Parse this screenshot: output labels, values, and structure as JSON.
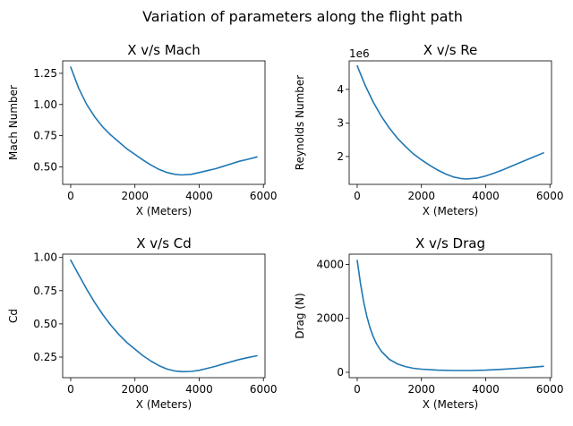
{
  "figure": {
    "suptitle": "Variation of parameters along the flight path"
  },
  "style": {
    "line_color": "#1f77b4"
  },
  "chart_data": [
    {
      "type": "line",
      "title": "X v/s Mach",
      "xlabel": "X (Meters)",
      "ylabel": "Mach Number",
      "xlim": [
        -250,
        6050
      ],
      "ylim": [
        0.36,
        1.35
      ],
      "xticks": [
        0,
        2000,
        4000,
        6000
      ],
      "xtick_labels": [
        "0",
        "2000",
        "4000",
        "6000"
      ],
      "yticks": [
        0.5,
        0.75,
        1.0,
        1.25
      ],
      "ytick_labels": [
        "0.50",
        "0.75",
        "1.00",
        "1.25"
      ],
      "offset_label": "",
      "grid": false,
      "series": [
        {
          "x": [
            0,
            250,
            500,
            750,
            1000,
            1250,
            1500,
            1750,
            2000,
            2250,
            2500,
            2750,
            3000,
            3250,
            3450,
            3750,
            4000,
            4250,
            4500,
            4750,
            5000,
            5250,
            5500,
            5800
          ],
          "y": [
            1.3,
            1.13,
            1.0,
            0.9,
            0.82,
            0.755,
            0.7,
            0.645,
            0.6,
            0.555,
            0.515,
            0.48,
            0.455,
            0.44,
            0.435,
            0.44,
            0.455,
            0.47,
            0.485,
            0.505,
            0.525,
            0.545,
            0.56,
            0.58
          ]
        }
      ]
    },
    {
      "type": "line",
      "title": "X v/s Re",
      "xlabel": "X (Meters)",
      "ylabel": "Reynolds Number",
      "xlim": [
        -250,
        6050
      ],
      "ylim": [
        1.17,
        4.85
      ],
      "xticks": [
        0,
        2000,
        4000,
        6000
      ],
      "xtick_labels": [
        "0",
        "2000",
        "4000",
        "6000"
      ],
      "yticks": [
        2,
        3,
        4
      ],
      "ytick_labels": [
        "2",
        "3",
        "4"
      ],
      "offset_label": "1e6",
      "grid": false,
      "series": [
        {
          "x": [
            0,
            250,
            500,
            750,
            1000,
            1250,
            1500,
            1750,
            2000,
            2250,
            2500,
            2750,
            3000,
            3250,
            3400,
            3750,
            4000,
            4250,
            4500,
            4750,
            5000,
            5250,
            5500,
            5800
          ],
          "y": [
            4.7,
            4.12,
            3.62,
            3.2,
            2.85,
            2.55,
            2.3,
            2.08,
            1.9,
            1.74,
            1.6,
            1.48,
            1.39,
            1.34,
            1.33,
            1.36,
            1.42,
            1.5,
            1.59,
            1.69,
            1.79,
            1.89,
            1.99,
            2.11
          ]
        }
      ]
    },
    {
      "type": "line",
      "title": "X v/s Cd",
      "xlabel": "X (Meters)",
      "ylabel": "Cd",
      "xlim": [
        -250,
        6050
      ],
      "ylim": [
        0.095,
        1.025
      ],
      "xticks": [
        0,
        2000,
        4000,
        6000
      ],
      "xtick_labels": [
        "0",
        "2000",
        "4000",
        "6000"
      ],
      "yticks": [
        0.25,
        0.5,
        0.75,
        1.0
      ],
      "ytick_labels": [
        "0.25",
        "0.50",
        "0.75",
        "1.00"
      ],
      "offset_label": "",
      "grid": false,
      "series": [
        {
          "x": [
            0,
            250,
            500,
            750,
            1000,
            1250,
            1500,
            1750,
            2000,
            2250,
            2500,
            2750,
            3000,
            3250,
            3500,
            3750,
            4000,
            4250,
            4500,
            4750,
            5000,
            5250,
            5500,
            5800
          ],
          "y": [
            0.98,
            0.87,
            0.76,
            0.66,
            0.57,
            0.49,
            0.42,
            0.36,
            0.31,
            0.26,
            0.22,
            0.185,
            0.16,
            0.145,
            0.14,
            0.142,
            0.15,
            0.165,
            0.18,
            0.198,
            0.215,
            0.232,
            0.245,
            0.26
          ]
        }
      ]
    },
    {
      "type": "line",
      "title": "X v/s Drag",
      "xlabel": "X (Meters)",
      "ylabel": "Drag (N)",
      "xlim": [
        -250,
        6050
      ],
      "ylim": [
        -200,
        4380
      ],
      "xticks": [
        0,
        2000,
        4000,
        6000
      ],
      "xtick_labels": [
        "0",
        "2000",
        "4000",
        "6000"
      ],
      "yticks": [
        0,
        2000,
        4000
      ],
      "ytick_labels": [
        "0",
        "2000",
        "4000"
      ],
      "offset_label": "",
      "grid": false,
      "series": [
        {
          "x": [
            0,
            100,
            200,
            300,
            400,
            500,
            600,
            750,
            1000,
            1250,
            1500,
            1750,
            2000,
            2500,
            3000,
            3500,
            4000,
            4500,
            5000,
            5500,
            5800
          ],
          "y": [
            4150,
            3300,
            2620,
            2080,
            1650,
            1320,
            1060,
            780,
            480,
            310,
            210,
            150,
            115,
            80,
            65,
            65,
            80,
            110,
            150,
            190,
            220
          ]
        }
      ]
    }
  ]
}
